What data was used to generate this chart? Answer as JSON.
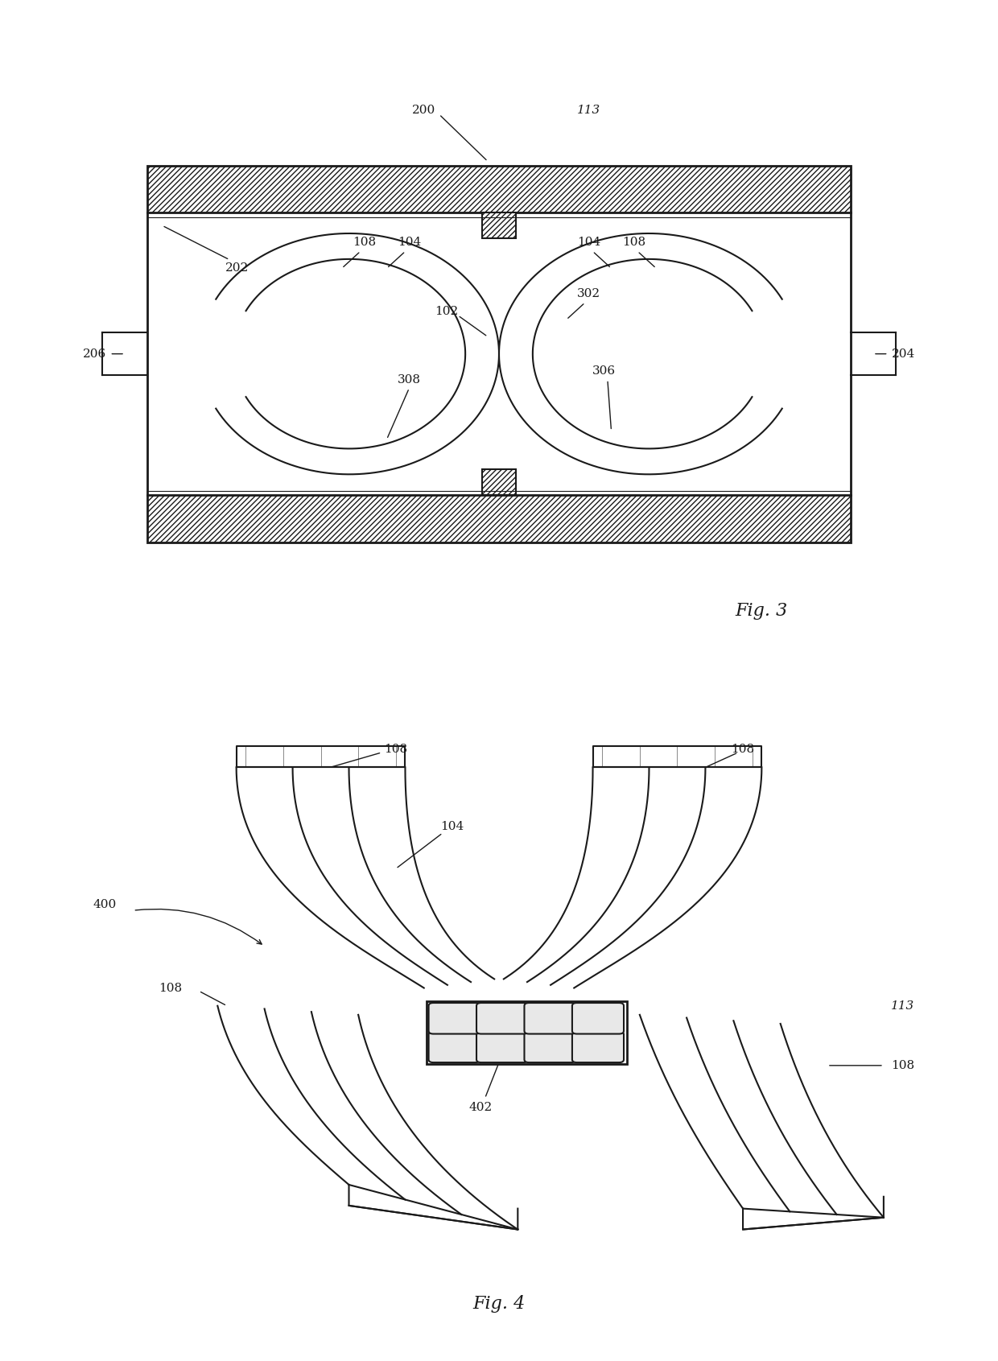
{
  "fig_width": 12.4,
  "fig_height": 16.91,
  "bg_color": "#ffffff",
  "line_color": "#1a1a1a",
  "fig3_label": "Fig. 3",
  "fig4_label": "Fig. 4"
}
